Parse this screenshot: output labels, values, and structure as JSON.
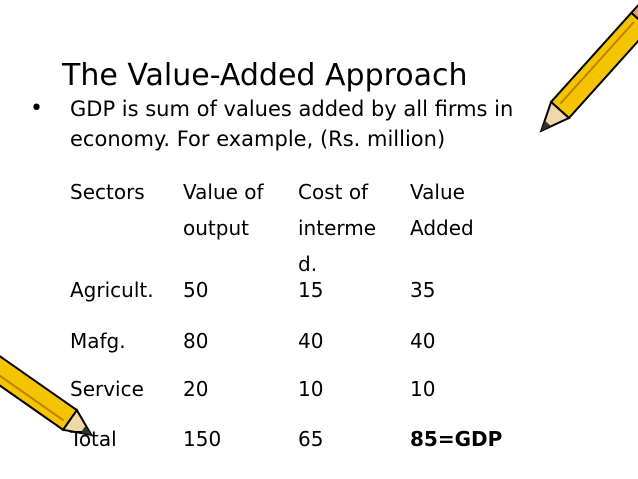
{
  "title": "The Value-Added Approach",
  "bullet": "GDP is sum of values added by all firms in economy. For example, (Rs. million)",
  "table": {
    "headers": [
      [
        "Sectors"
      ],
      [
        "Value of",
        "output"
      ],
      [
        "Cost of",
        "interme",
        "d."
      ],
      [
        "Value",
        "Added"
      ]
    ],
    "rows": [
      [
        "Agricult.",
        50,
        15,
        35
      ],
      [
        "Mafg.",
        80,
        40,
        40
      ],
      [
        "Service",
        20,
        10,
        10
      ],
      [
        "Total",
        150,
        65,
        "85=GDP"
      ]
    ]
  }
}
